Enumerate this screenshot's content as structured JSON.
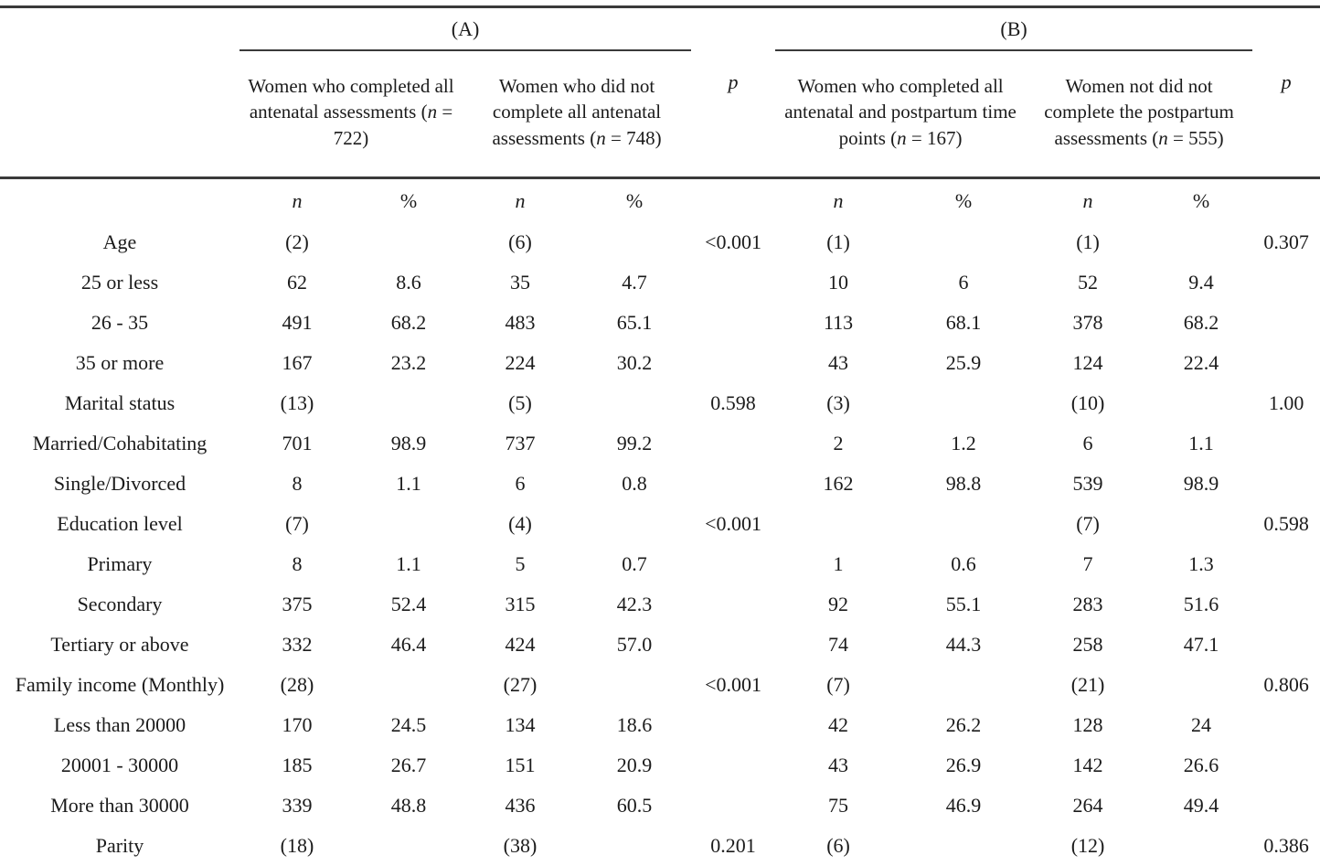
{
  "labels": {
    "n": "n",
    "pct": "%",
    "p": "p",
    "eq": "="
  },
  "header": {
    "group_a": {
      "label": "(A)",
      "columns": [
        {
          "desc": "Women who completed all antenatal assessments",
          "n_value": "722"
        },
        {
          "desc": "Women who did not complete all antenatal assessments",
          "n_value": "748"
        }
      ]
    },
    "group_b": {
      "label": "(B)",
      "columns": [
        {
          "desc": "Women who completed all antenatal and postpartum time points",
          "n_value": "167"
        },
        {
          "desc": "Women not did not complete the postpartum assessments",
          "n_value": "555"
        }
      ]
    }
  },
  "rows": [
    {
      "label": "Age",
      "cells": [
        "(2)",
        "",
        "(6)",
        "",
        "<0.001",
        "(1)",
        "",
        "(1)",
        "",
        "0.307"
      ]
    },
    {
      "label": "25 or less",
      "cells": [
        "62",
        "8.6",
        "35",
        "4.7",
        "",
        "10",
        "6",
        "52",
        "9.4",
        ""
      ]
    },
    {
      "label": "26 - 35",
      "cells": [
        "491",
        "68.2",
        "483",
        "65.1",
        "",
        "113",
        "68.1",
        "378",
        "68.2",
        ""
      ]
    },
    {
      "label": "35 or more",
      "cells": [
        "167",
        "23.2",
        "224",
        "30.2",
        "",
        "43",
        "25.9",
        "124",
        "22.4",
        ""
      ]
    },
    {
      "label": "Marital status",
      "cells": [
        "(13)",
        "",
        "(5)",
        "",
        "0.598",
        "(3)",
        "",
        "(10)",
        "",
        "1.00"
      ]
    },
    {
      "label": "Married/Cohabitating",
      "cells": [
        "701",
        "98.9",
        "737",
        "99.2",
        "",
        "2",
        "1.2",
        "6",
        "1.1",
        ""
      ]
    },
    {
      "label": "Single/Divorced",
      "cells": [
        "8",
        "1.1",
        "6",
        "0.8",
        "",
        "162",
        "98.8",
        "539",
        "98.9",
        ""
      ]
    },
    {
      "label": "Education level",
      "cells": [
        "(7)",
        "",
        "(4)",
        "",
        "<0.001",
        "",
        "",
        "(7)",
        "",
        "0.598"
      ]
    },
    {
      "label": "Primary",
      "cells": [
        "8",
        "1.1",
        "5",
        "0.7",
        "",
        "1",
        "0.6",
        "7",
        "1.3",
        ""
      ]
    },
    {
      "label": "Secondary",
      "cells": [
        "375",
        "52.4",
        "315",
        "42.3",
        "",
        "92",
        "55.1",
        "283",
        "51.6",
        ""
      ]
    },
    {
      "label": "Tertiary or above",
      "cells": [
        "332",
        "46.4",
        "424",
        "57.0",
        "",
        "74",
        "44.3",
        "258",
        "47.1",
        ""
      ]
    },
    {
      "label": "Family income (Monthly)",
      "cells": [
        "(28)",
        "",
        "(27)",
        "",
        "<0.001",
        "(7)",
        "",
        "(21)",
        "",
        "0.806"
      ]
    },
    {
      "label": "Less than 20000",
      "cells": [
        "170",
        "24.5",
        "134",
        "18.6",
        "",
        "42",
        "26.2",
        "128",
        "24",
        ""
      ]
    },
    {
      "label": "20001 - 30000",
      "cells": [
        "185",
        "26.7",
        "151",
        "20.9",
        "",
        "43",
        "26.9",
        "142",
        "26.6",
        ""
      ]
    },
    {
      "label": "More than 30000",
      "cells": [
        "339",
        "48.8",
        "436",
        "60.5",
        "",
        "75",
        "46.9",
        "264",
        "49.4",
        ""
      ]
    },
    {
      "label": "Parity",
      "cells": [
        "(18)",
        "",
        "(38)",
        "",
        "0.201",
        "(6)",
        "",
        "(12)",
        "",
        "0.386"
      ]
    }
  ]
}
